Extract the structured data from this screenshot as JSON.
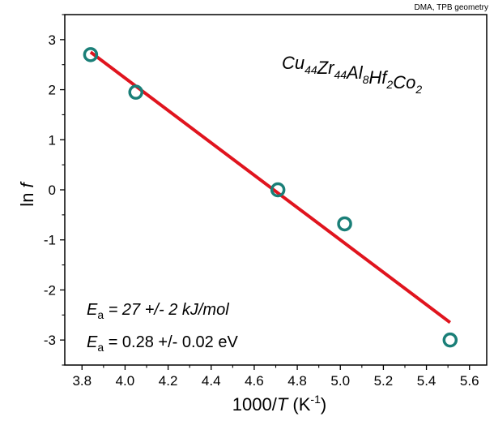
{
  "chart_data": {
    "type": "scatter",
    "corner_note": "DMA, TPB geometry",
    "formula": {
      "parts": [
        {
          "text": "Cu",
          "sub": "44"
        },
        {
          "text": "Zr",
          "sub": "44"
        },
        {
          "text": "Al",
          "sub": "8"
        },
        {
          "text": "Hf",
          "sub": "2"
        },
        {
          "text": "Co",
          "sub": "2"
        }
      ]
    },
    "xlabel": {
      "prefix": "1000/",
      "var": "T",
      "unit": " (K",
      "sup": "-1",
      "close": ")"
    },
    "ylabel": {
      "prefix": "ln ",
      "var": "f"
    },
    "xlim": [
      3.72,
      5.68
    ],
    "ylim": [
      -3.5,
      3.5
    ],
    "xticks": [
      "3.8",
      "4.0",
      "4.2",
      "4.4",
      "4.6",
      "4.8",
      "5.0",
      "5.2",
      "5.4",
      "5.6"
    ],
    "yticks": [
      "-3",
      "-2",
      "-1",
      "0",
      "1",
      "2",
      "3"
    ],
    "grid": false,
    "series": [
      {
        "kind": "points",
        "color": "#1a7f78",
        "x": [
          3.84,
          4.05,
          4.71,
          5.02,
          5.51
        ],
        "y": [
          2.7,
          1.95,
          0.0,
          -0.68,
          -3.0
        ]
      },
      {
        "kind": "fit-line",
        "color": "#e0141e",
        "x": [
          3.84,
          5.51
        ],
        "y": [
          2.75,
          -2.65
        ]
      }
    ],
    "annotations": {
      "line1": {
        "var": "E",
        "sub": "a",
        "text": " = 27 +/- 2 kJ/mol"
      },
      "line2": {
        "var": "E",
        "sub": "a",
        "text": " = 0.28 +/- 0.02 eV"
      }
    }
  }
}
